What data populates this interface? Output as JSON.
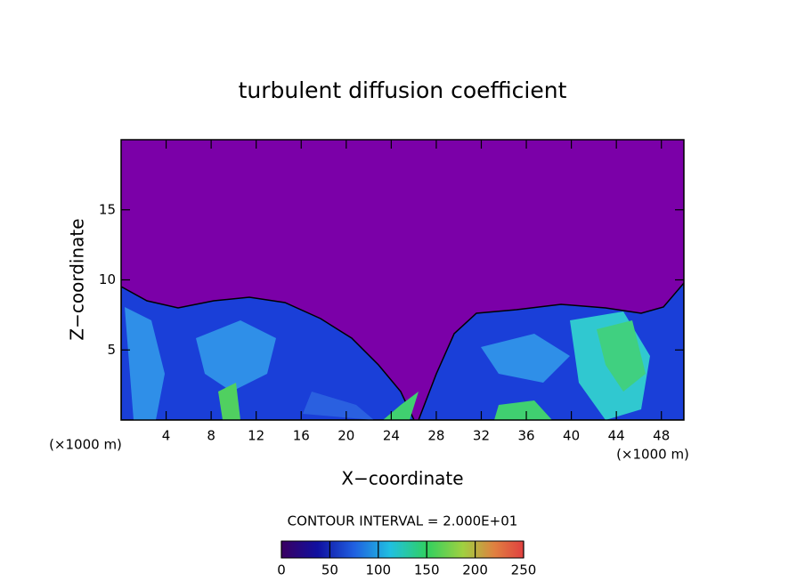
{
  "chart_data": {
    "type": "contour",
    "title": "turbulent diffusion coefficient",
    "x_label": "X−coordinate",
    "y_label": "Z−coordinate",
    "x_unit": "(×1000 m)",
    "y_unit": "(×1000 m)",
    "xlim": [
      0,
      50
    ],
    "xticks": [
      4,
      8,
      12,
      16,
      20,
      24,
      28,
      32,
      36,
      40,
      44,
      48
    ],
    "ylim": [
      0,
      20
    ],
    "yticks": [
      5,
      10,
      15
    ],
    "contour_interval_label": "CONTOUR INTERVAL = 2.000E+01",
    "colorbar": {
      "lim": [
        0,
        250
      ],
      "ticks": [
        0,
        50,
        100,
        150,
        200,
        250
      ]
    }
  }
}
